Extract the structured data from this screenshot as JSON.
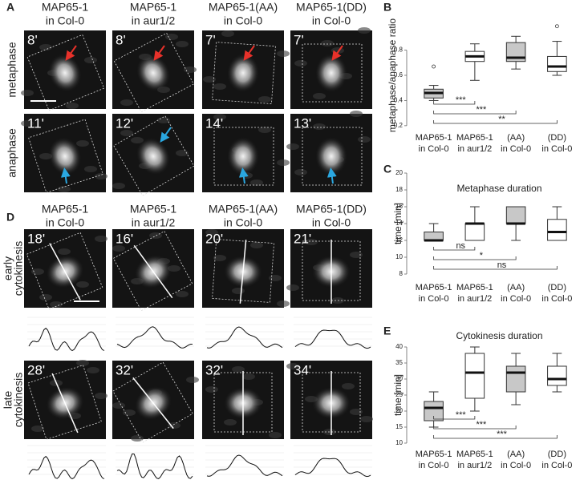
{
  "panel_labels": [
    "A",
    "B",
    "C",
    "D",
    "E"
  ],
  "panel_a": {
    "columns": [
      [
        "MAP65-1",
        "in Col-0"
      ],
      [
        "MAP65-1",
        "in aur1/2"
      ],
      [
        "MAP65-1(AA)",
        "in Col-0"
      ],
      [
        "MAP65-1(DD)",
        "in Col-0"
      ]
    ],
    "rows": [
      [
        "metaphase"
      ],
      [
        "anaphase"
      ]
    ],
    "times": [
      [
        "8'",
        "8'",
        "7'",
        "7'"
      ],
      [
        "11'",
        "12'",
        "14'",
        "13'"
      ]
    ]
  },
  "panel_d": {
    "columns": [
      [
        "MAP65-1",
        "in Col-0"
      ],
      [
        "MAP65-1",
        "in aur1/2"
      ],
      [
        "MAP65-1(AA)",
        "in Col-0"
      ],
      [
        "MAP65-1(DD)",
        "in Col-0"
      ]
    ],
    "rows": [
      [
        "early",
        "cytokinesis"
      ],
      [
        "late",
        "cytokinesis"
      ]
    ],
    "times": [
      [
        "18'",
        "16'",
        "20'",
        "21'"
      ],
      [
        "28'",
        "32'",
        "32'",
        "34'"
      ]
    ]
  },
  "chart_data": [
    {
      "type": "box",
      "y_label": "metaphase/anaphase ratio",
      "categories": [
        [
          "MAP65-1",
          "in Col-0"
        ],
        [
          "MAP65-1",
          "in aur1/2"
        ],
        [
          "(AA)",
          "in Col-0"
        ],
        [
          "(DD)",
          "in Col-0"
        ]
      ],
      "colors": [
        "#c8c8c8",
        "#ffffff",
        "#c8c8c8",
        "#ffffff"
      ],
      "boxes": [
        {
          "low": 0.4,
          "q1": 0.42,
          "median": 0.46,
          "q3": 0.49,
          "high": 0.52,
          "outliers": [
            0.67
          ]
        },
        {
          "low": 0.56,
          "q1": 0.71,
          "median": 0.75,
          "q3": 0.79,
          "high": 0.85,
          "outliers": []
        },
        {
          "low": 0.65,
          "q1": 0.71,
          "median": 0.74,
          "q3": 0.86,
          "high": 0.91,
          "outliers": []
        },
        {
          "low": 0.6,
          "q1": 0.63,
          "median": 0.67,
          "q3": 0.75,
          "high": 0.87,
          "outliers": [
            0.99
          ]
        }
      ],
      "ylim": [
        0.18,
        1.02
      ],
      "yticks": [
        0.2,
        0.4,
        0.6,
        0.8
      ],
      "significance": [
        "***",
        "***",
        "**"
      ]
    },
    {
      "type": "box",
      "title": "Metaphase duration",
      "y_label": "time [min]",
      "categories": [
        [
          "MAP65-1",
          "in Col-0"
        ],
        [
          "MAP65-1",
          "in aur1/2"
        ],
        [
          "(AA)",
          "in Col-0"
        ],
        [
          "(DD)",
          "in Col-0"
        ]
      ],
      "colors": [
        "#c8c8c8",
        "#ffffff",
        "#c8c8c8",
        "#ffffff"
      ],
      "boxes": [
        {
          "low": 12,
          "q1": 12,
          "median": 12,
          "q3": 13,
          "high": 14,
          "outliers": []
        },
        {
          "low": 12,
          "q1": 12,
          "median": 14,
          "q3": 14,
          "high": 16,
          "outliers": []
        },
        {
          "low": 12,
          "q1": 14,
          "median": 14,
          "q3": 16,
          "high": 16,
          "outliers": []
        },
        {
          "low": 12,
          "q1": 12,
          "median": 13,
          "q3": 14.5,
          "high": 16,
          "outliers": []
        }
      ],
      "ylim": [
        8,
        20
      ],
      "yticks": [
        8,
        10,
        12,
        14,
        16,
        18,
        20
      ],
      "significance": [
        "ns",
        "*",
        "ns"
      ]
    },
    {
      "type": "box",
      "title": "Cytokinesis duration",
      "y_label": "time [min]",
      "categories": [
        [
          "MAP65-1",
          "in Col-0"
        ],
        [
          "MAP65-1",
          "in aur1/2"
        ],
        [
          "(AA)",
          "in Col-0"
        ],
        [
          "(DD)",
          "in Col-0"
        ]
      ],
      "colors": [
        "#c8c8c8",
        "#ffffff",
        "#c8c8c8",
        "#ffffff"
      ],
      "boxes": [
        {
          "low": 15,
          "q1": 17,
          "median": 21,
          "q3": 23,
          "high": 26,
          "outliers": []
        },
        {
          "low": 20,
          "q1": 24,
          "median": 32,
          "q3": 38,
          "high": 40,
          "outliers": []
        },
        {
          "low": 22,
          "q1": 26,
          "median": 32,
          "q3": 34,
          "high": 38,
          "outliers": []
        },
        {
          "low": 26,
          "q1": 28,
          "median": 30,
          "q3": 34,
          "high": 38,
          "outliers": []
        }
      ],
      "ylim": [
        10,
        40
      ],
      "yticks": [
        10,
        15,
        20,
        25,
        30,
        35,
        40
      ],
      "significance": [
        "***",
        "***",
        "***"
      ]
    }
  ]
}
